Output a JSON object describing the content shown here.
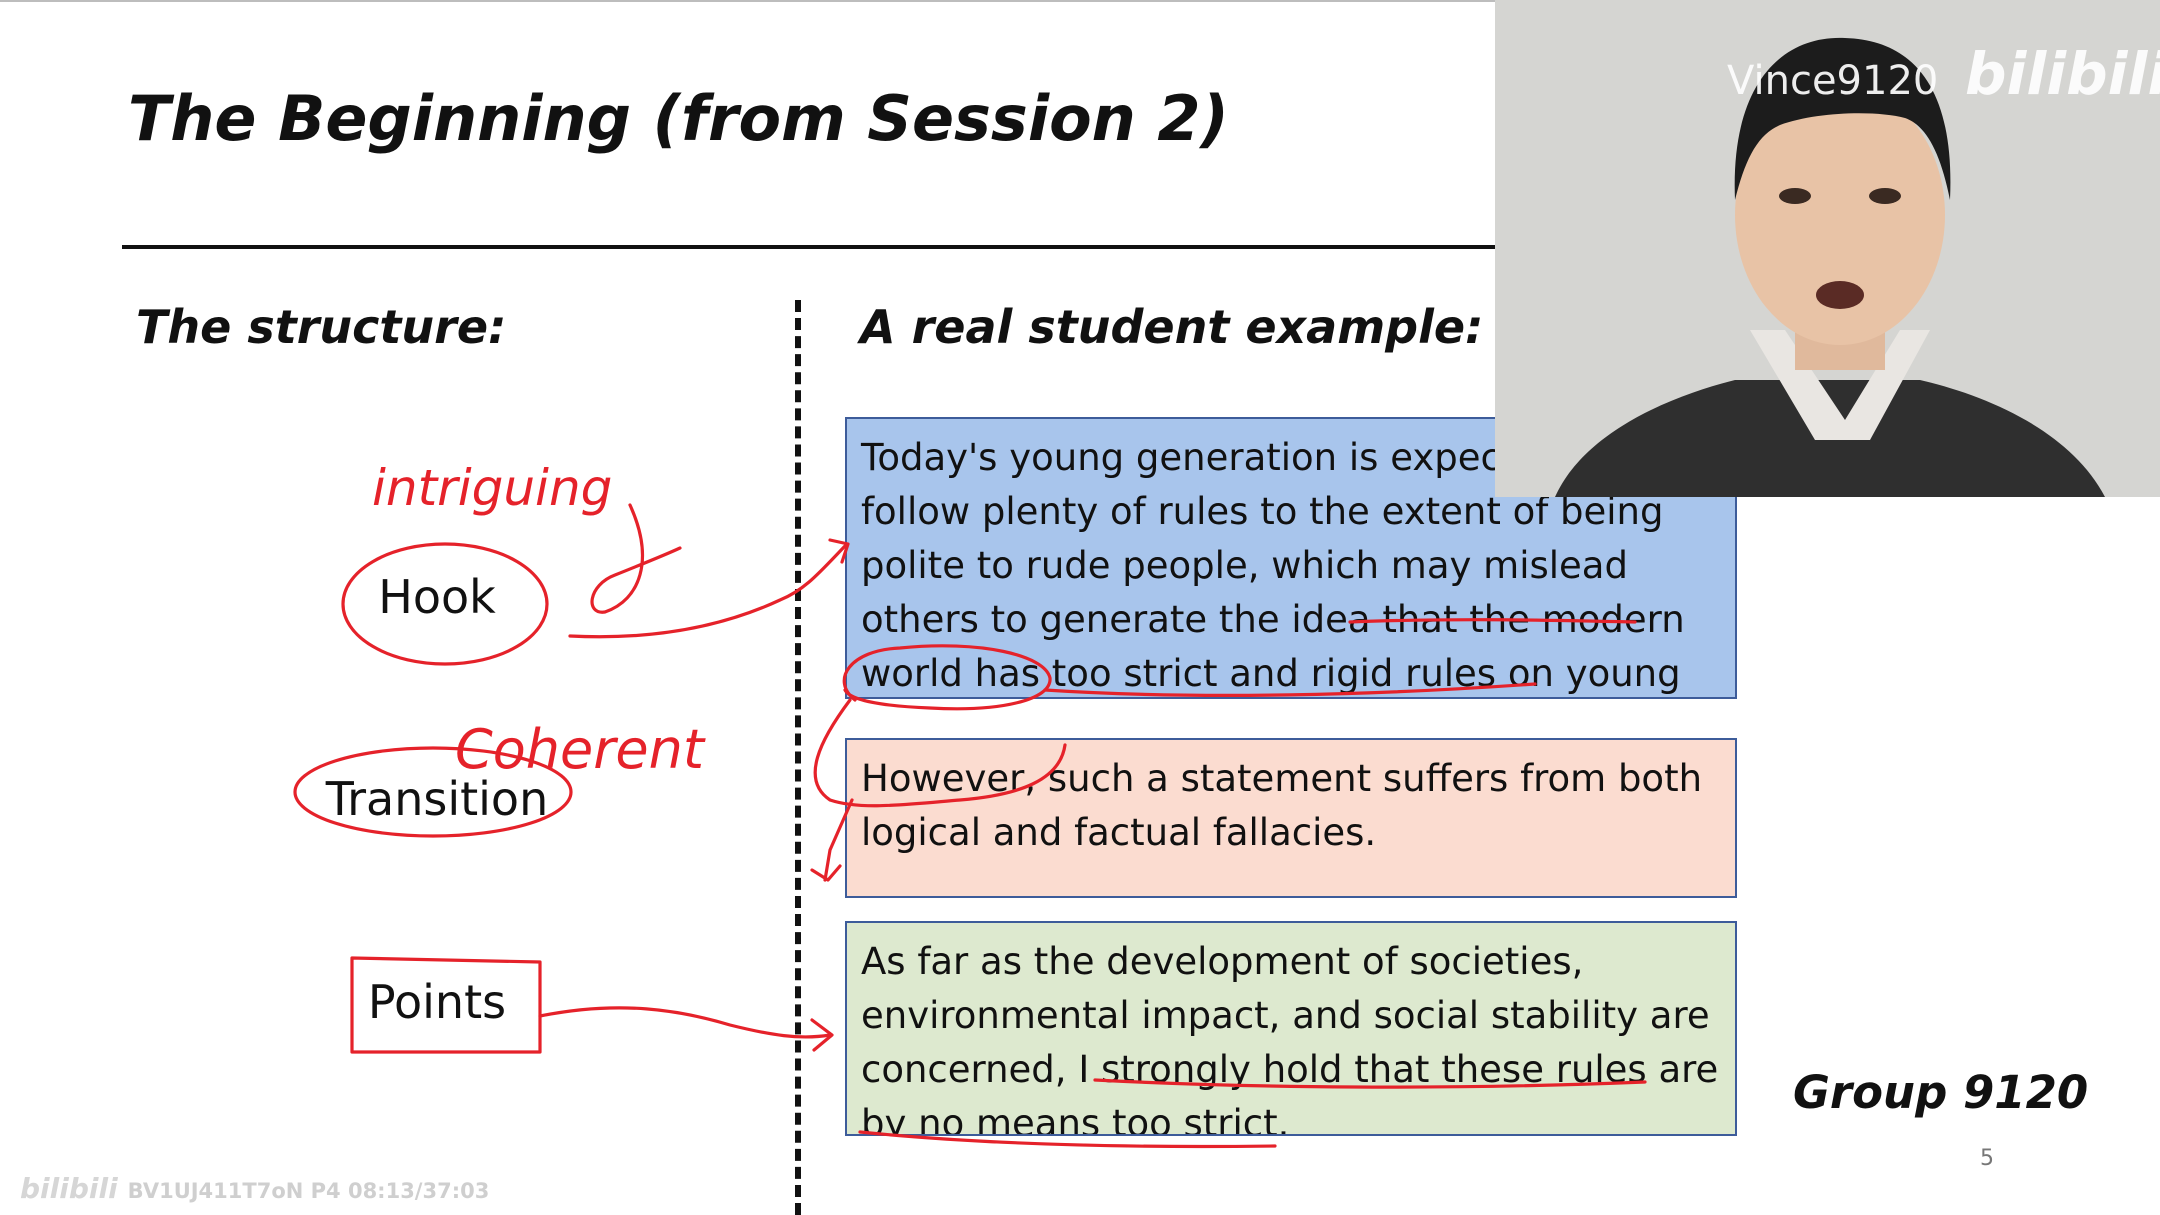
{
  "slide": {
    "title": "The Beginning (from Session 2)",
    "structure_heading": "The structure:",
    "example_heading": "A real student example:",
    "structure_items": [
      {
        "label": "Hook",
        "annotation": "intriguing"
      },
      {
        "label": "Transition",
        "annotation": "Coherent"
      },
      {
        "label": "Points"
      }
    ],
    "examples": [
      {
        "text": "Today's young generation is expected to follow plenty of rules to the extent of being polite to rude people, which may mislead others to generate the idea that the modern world has too strict and rigid rules on young adults."
      },
      {
        "text": "However, such a statement suffers from both logical and factual fallacies."
      },
      {
        "text": "As far as the development of societies, environmental impact, and social stability are concerned, I strongly hold that these rules are by no means too strict."
      }
    ],
    "group_label": "Group 9120",
    "page_number": "5"
  },
  "webcam": {
    "channel": "Vince9120",
    "logo": "bilibili"
  },
  "player": {
    "watermark": "bilibili",
    "video_info": "BV1UJ411T7oN P4 08:13/37:03"
  },
  "colors": {
    "hook_box": "#a8c5ec",
    "transition_box": "#fbdcd0",
    "points_box": "#dde9cf",
    "box_border": "#3d5c9a",
    "ink": "#e5222a"
  }
}
